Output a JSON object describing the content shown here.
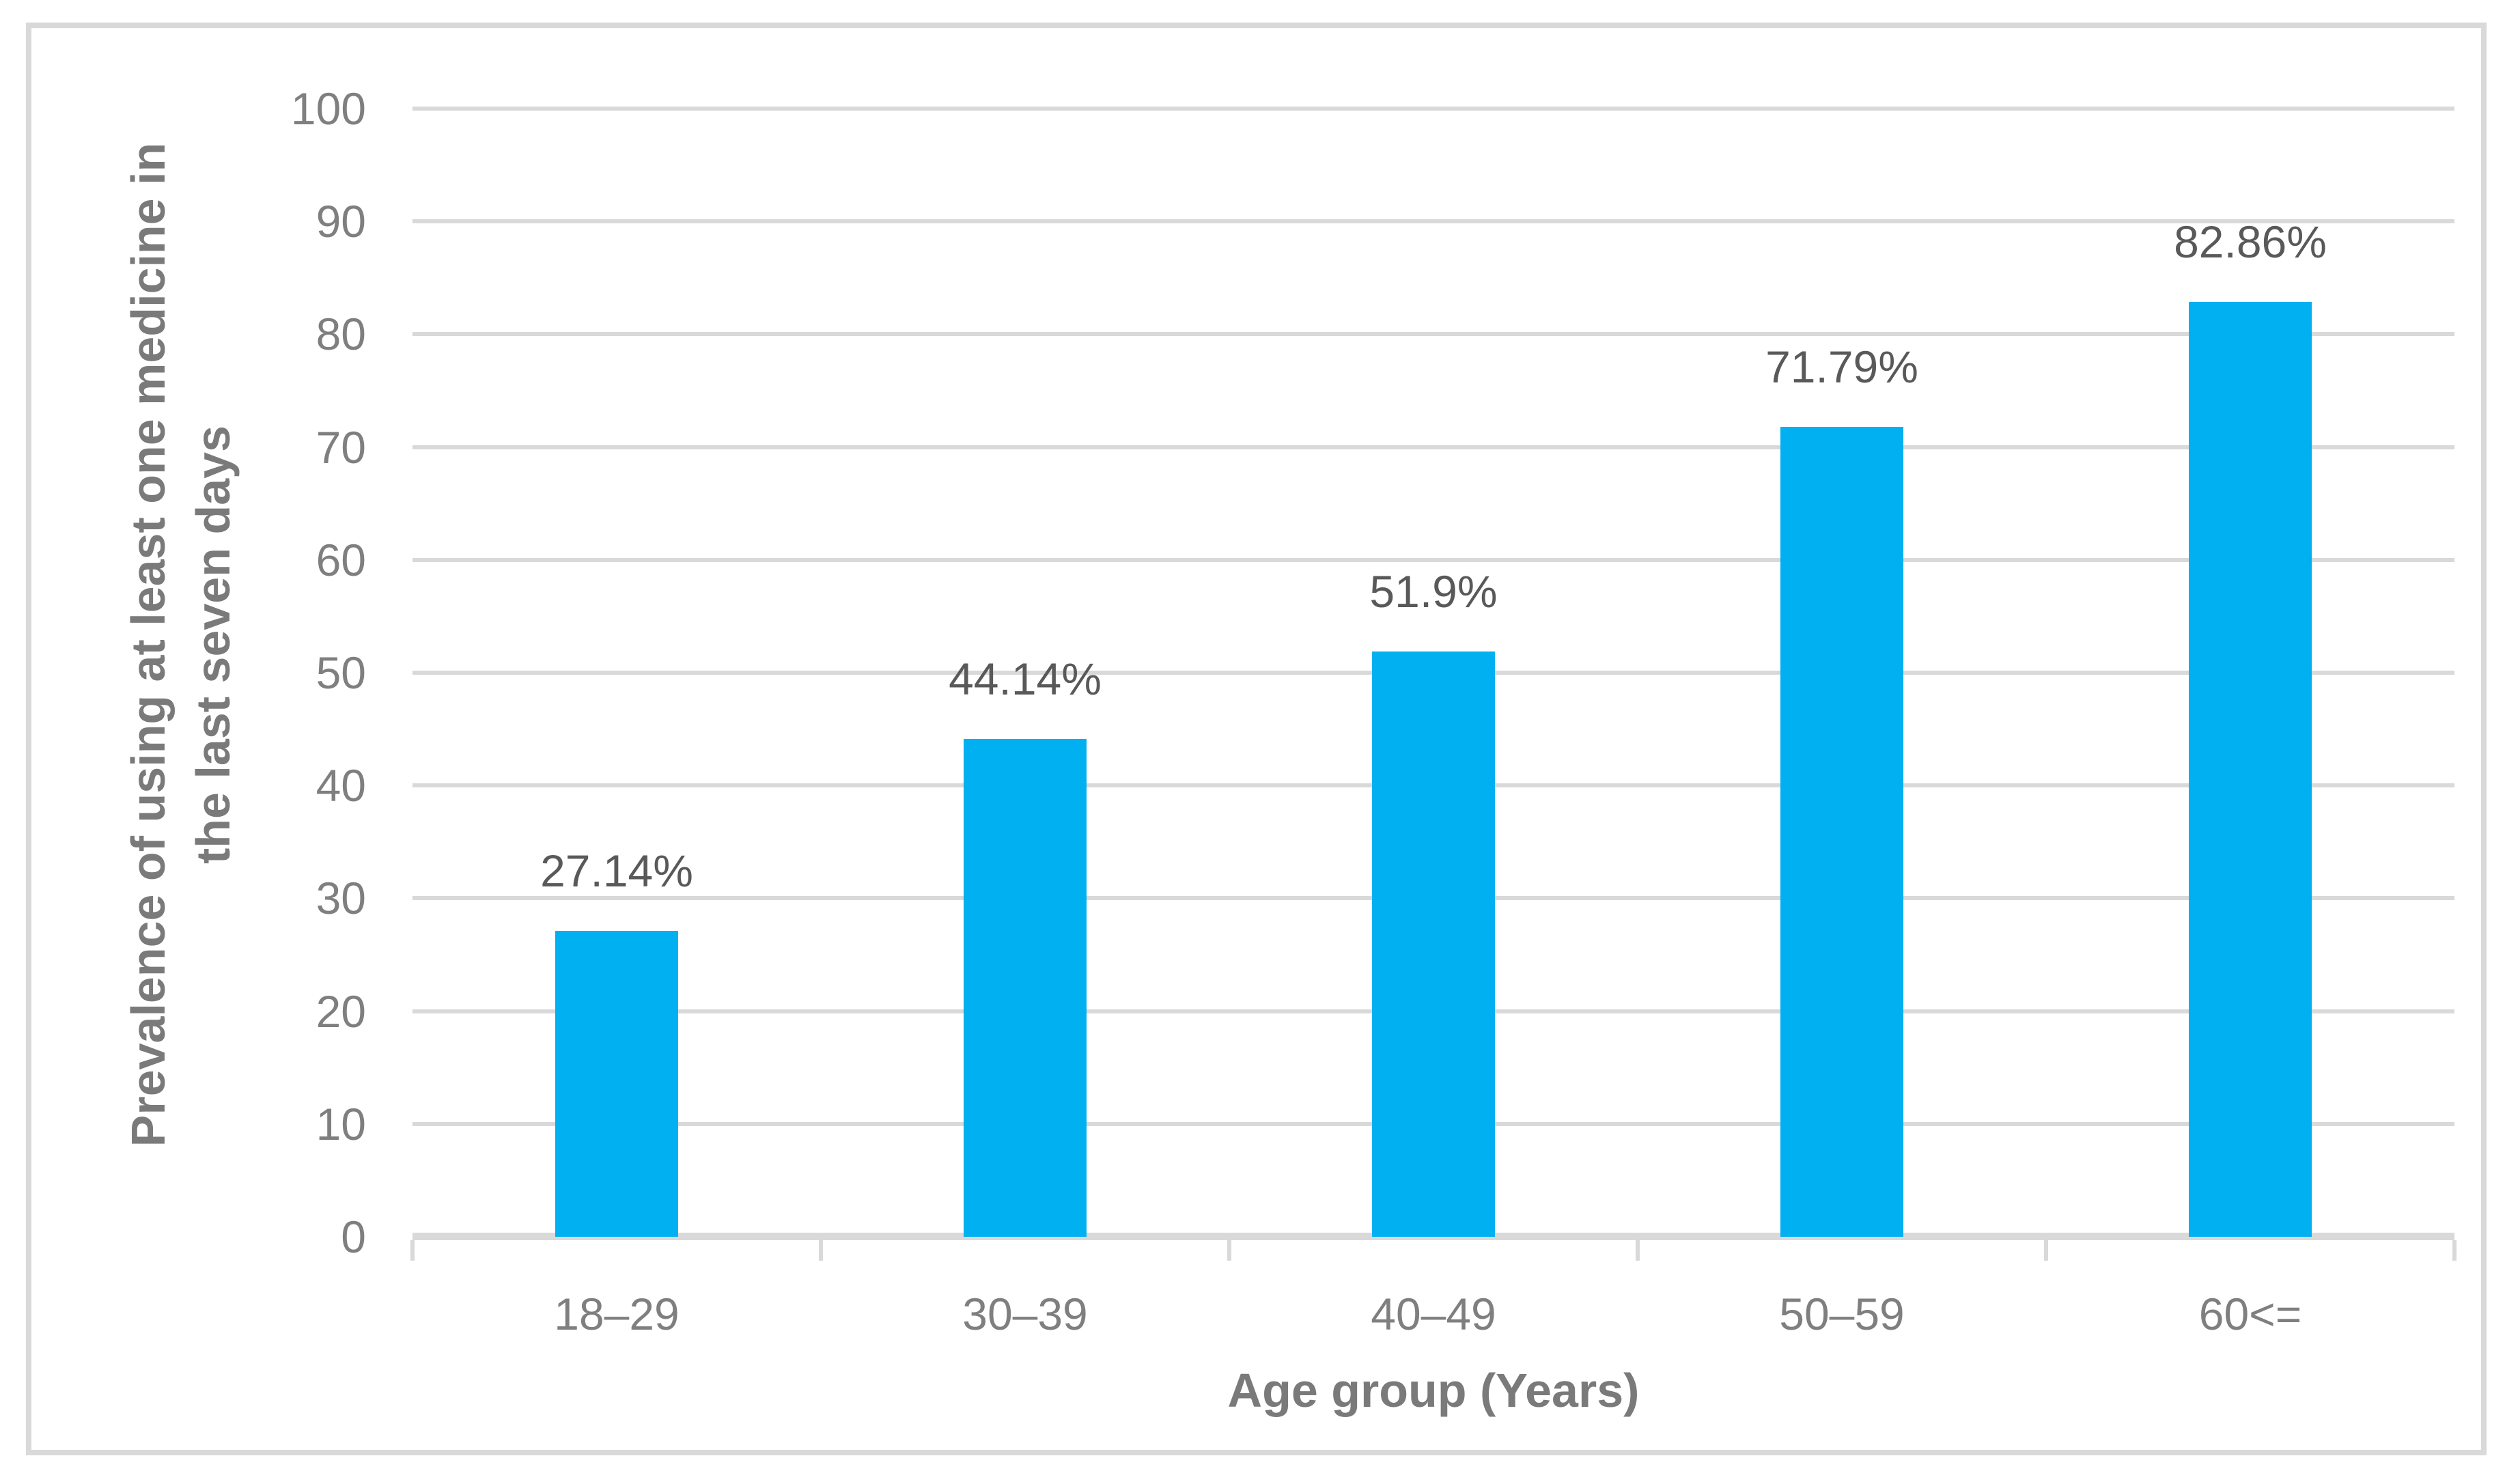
{
  "chart_data": {
    "type": "bar",
    "title": "",
    "categories": [
      "18–29",
      "30–39",
      "40–49",
      "50–59",
      "60<="
    ],
    "values": [
      27.14,
      44.14,
      51.9,
      71.79,
      82.86
    ],
    "data_labels": [
      "27.14%",
      "44.14%",
      "51.9%",
      "71.79%",
      "82.86%"
    ],
    "xlabel": "Age group (Years)",
    "ylabel": "Prevalence of using at least one medicine in the last seven days",
    "ylabel_lines": [
      "Prevalence of using at least one medicine in",
      "the last seven days"
    ],
    "ylim": [
      0,
      100
    ],
    "ytick_step": 10,
    "ytick_labels": [
      "0",
      "10",
      "20",
      "30",
      "40",
      "50",
      "60",
      "70",
      "80",
      "90",
      "100"
    ],
    "grid": "horizontal",
    "legend_position": "none",
    "series_color": "#00B0F0"
  },
  "colors": {
    "bar": "#00B0F0",
    "gridline": "#D9D9D9",
    "axis_line": "#D9D9D9",
    "frame_border": "#D9D9D9",
    "tick_label_text": "#7F7F7F",
    "data_label_text": "#595959",
    "axis_title_text": "#7A7A7A"
  }
}
